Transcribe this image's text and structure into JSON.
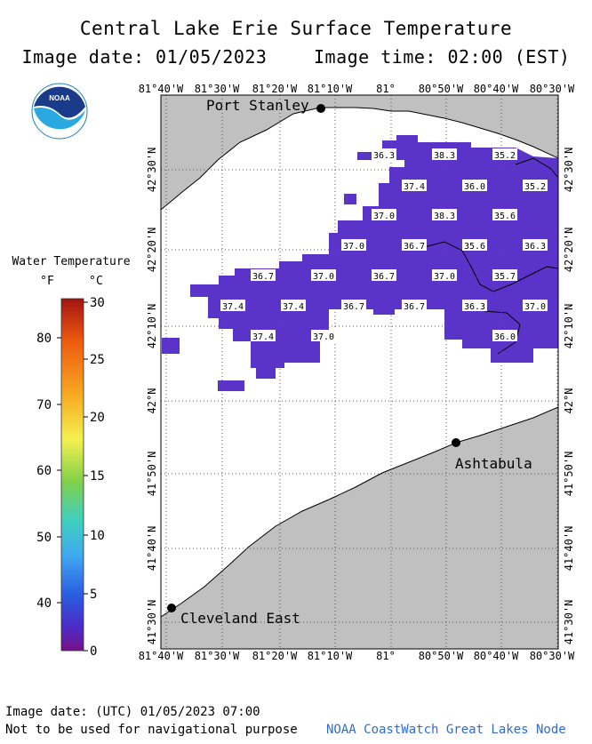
{
  "title": "Central Lake Erie Surface Temperature",
  "image_date_label": "Image date: 01/05/2023",
  "image_time_label": "Image time: 02:00 (EST)",
  "logo_text": "NOAA",
  "legend": {
    "title": "Water Temperature",
    "unit_f": "°F",
    "unit_c": "°C",
    "f_ticks": [
      "80",
      "70",
      "60",
      "50",
      "40"
    ],
    "c_ticks": [
      "30",
      "25",
      "20",
      "15",
      "10",
      "5",
      "0"
    ]
  },
  "lon_labels": [
    "81°40'W",
    "81°30'W",
    "81°20'W",
    "81°10'W",
    "81°",
    "80°50'W",
    "80°40'W",
    "80°30'W"
  ],
  "lat_labels": [
    "42°30'N",
    "42°20'N",
    "42°10'N",
    "42°N",
    "41°50'N",
    "41°40'N",
    "41°30'N"
  ],
  "places": [
    {
      "name": "Port Stanley"
    },
    {
      "name": "Ashtabula"
    },
    {
      "name": "Cleveland East"
    }
  ],
  "temperature_labels": [
    "36.3",
    "38.3",
    "35.2",
    "37.4",
    "36.0",
    "35.2",
    "37.0",
    "38.3",
    "35.6",
    "37.0",
    "36.7",
    "35.6",
    "36.3",
    "36.7",
    "37.0",
    "36.7",
    "37.0",
    "35.7",
    "37.4",
    "37.4",
    "36.7",
    "36.7",
    "36.3",
    "37.0",
    "37.4",
    "37.0",
    "36.0"
  ],
  "footer_date": "Image date: (UTC) 01/05/2023  07:00",
  "footer_note": "Not to be used for navigational purpose",
  "credit": "NOAA CoastWatch Great Lakes Node",
  "colors": {
    "land": "#c0c0c0",
    "water_data": "#5a34c8",
    "water_data_dark": "#6a2fc0",
    "grid": "#555555"
  }
}
